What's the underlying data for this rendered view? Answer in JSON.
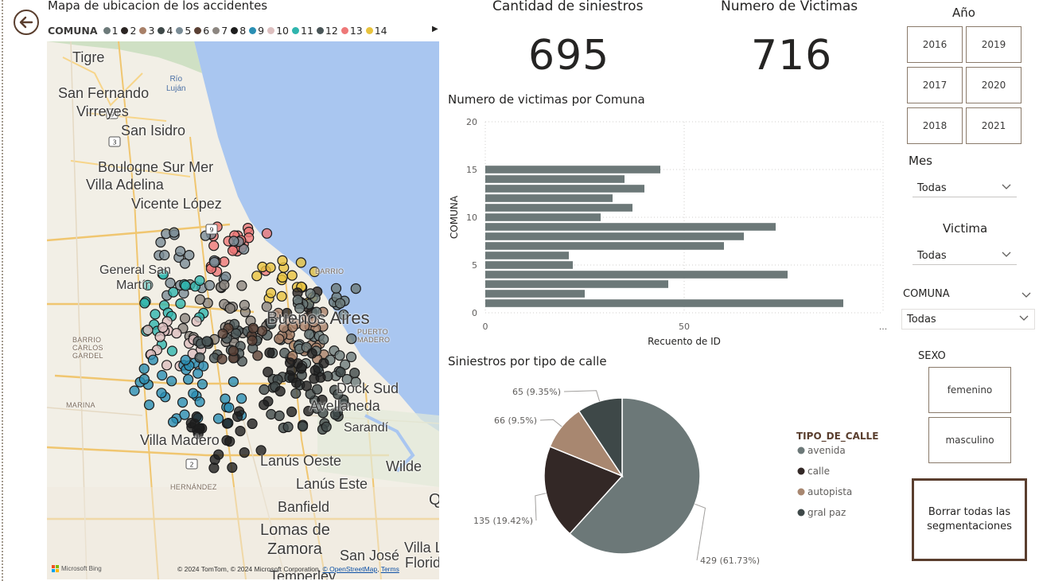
{
  "map": {
    "title": "Mapa de ubicacion de los accidentes",
    "legend_title": "COMUNA",
    "legend": [
      {
        "label": "1",
        "color": "#6c7a7a"
      },
      {
        "label": "2",
        "color": "#2b2523"
      },
      {
        "label": "3",
        "color": "#a88068"
      },
      {
        "label": "4",
        "color": "#3e4848"
      },
      {
        "label": "5",
        "color": "#7a8c96"
      },
      {
        "label": "6",
        "color": "#5a4034"
      },
      {
        "label": "7",
        "color": "#8c8680"
      },
      {
        "label": "8",
        "color": "#1e1e1e"
      },
      {
        "label": "9",
        "color": "#2a8fb4"
      },
      {
        "label": "10",
        "color": "#ddbfbf"
      },
      {
        "label": "11",
        "color": "#2fb5ae"
      },
      {
        "label": "12",
        "color": "#4a5658"
      },
      {
        "label": "13",
        "color": "#ee7878"
      },
      {
        "label": "14",
        "color": "#e8c33e"
      }
    ],
    "labels": {
      "tigre": "Tigre",
      "rio_lujan": "Río\nLuján",
      "san_fernando": "San Fernando",
      "virreyes": "Virreyes",
      "san_isidro": "San Isidro",
      "boulogne": "Boulogne Sur Mer",
      "villa_adelina": "Villa Adelina",
      "vicente_lopez": "Vicente López",
      "general_san_martin_1": "General San",
      "general_san_martin_2": "Martín",
      "barrio_carlos_gardel": "BARRIO\nCARLOS\nGARDEL",
      "marina": "MARINA",
      "villa_madero": "Villa Madero",
      "lanus_oeste": "Lanús Oeste",
      "lanus_este": "Lanús Este",
      "banfield": "Banfield",
      "lomas_1": "Lomas de",
      "lomas_2": "Zamora",
      "san_jose": "San José",
      "villa_1": "Villa L",
      "villa_2": "Florid",
      "temperley": "Temperley",
      "hernandez": "HERNÁNDEZ",
      "buenos_aires": "Buenos Aires",
      "dock_sud": "Dock Sud",
      "avellaneda": "Avellaneda",
      "sarandi": "Sarandí",
      "wilde": "Wilde",
      "puerto_madero": "PUERTO\nMADERO",
      "barrio": "BARRIO",
      "quilmes_cut": "Q"
    },
    "routes": [
      "9",
      "3",
      "9",
      "2"
    ],
    "footer_copyright": "© 2024 TomTom, © 2024 Microsoft Corporation,",
    "footer_link_1": "© OpenStreetMap",
    "footer_link_2": "Terms",
    "bing_label": "Microsoft Bing"
  },
  "kpis": {
    "siniestros_title": "Cantidad de siniestros",
    "siniestros_value": "695",
    "victimas_title": "Numero de Victimas",
    "victimas_value": "716"
  },
  "bar_title": "Numero de victimas por Comuna",
  "pie_title": "Siniestros por tipo de calle",
  "chart_data": [
    {
      "type": "bar",
      "title": "Numero de victimas por Comuna",
      "orientation": "horizontal",
      "ylabel": "COMUNA",
      "xlabel": "Recuento de ID",
      "y_ticks": [
        "0",
        "5",
        "10",
        "15",
        "20"
      ],
      "x_ticks": [
        "0",
        "50",
        "..."
      ],
      "ylim": [
        0,
        20
      ],
      "xlim": [
        0,
        100
      ],
      "categories": [
        1,
        2,
        3,
        4,
        5,
        6,
        7,
        8,
        9,
        10,
        11,
        12,
        13,
        14,
        15
      ],
      "values": [
        90,
        25,
        46,
        76,
        22,
        21,
        60,
        65,
        73,
        29,
        37,
        32,
        40,
        35,
        44
      ],
      "color": "#6c7878"
    },
    {
      "type": "pie",
      "title": "Siniestros por tipo de calle",
      "legend_title": "TIPO_DE_CALLE",
      "slices": [
        {
          "name": "avenida",
          "value": 429,
          "label": "429 (61.73%)",
          "color": "#6c7878"
        },
        {
          "name": "calle",
          "value": 135,
          "label": "135 (19.42%)",
          "color": "#332826"
        },
        {
          "name": "autopista",
          "value": 66,
          "label": "66 (9.5%)",
          "color": "#a88770"
        },
        {
          "name": "gral paz",
          "value": 65,
          "label": "65 (9.35%)",
          "color": "#3e4848"
        }
      ]
    }
  ],
  "slicers": {
    "year_title": "Año",
    "years": [
      "2016",
      "2019",
      "2017",
      "2020",
      "2018",
      "2021"
    ],
    "mes_title": "Mes",
    "mes_value": "Todas",
    "victima_title": "Victima",
    "victima_value": "Todas",
    "comuna_title": "COMUNA",
    "comuna_value": "Todas",
    "sexo_title": "SEXO",
    "sexo_options": [
      "femenino",
      "masculino"
    ],
    "clear_button": "Borrar todas las segmentaciones"
  }
}
